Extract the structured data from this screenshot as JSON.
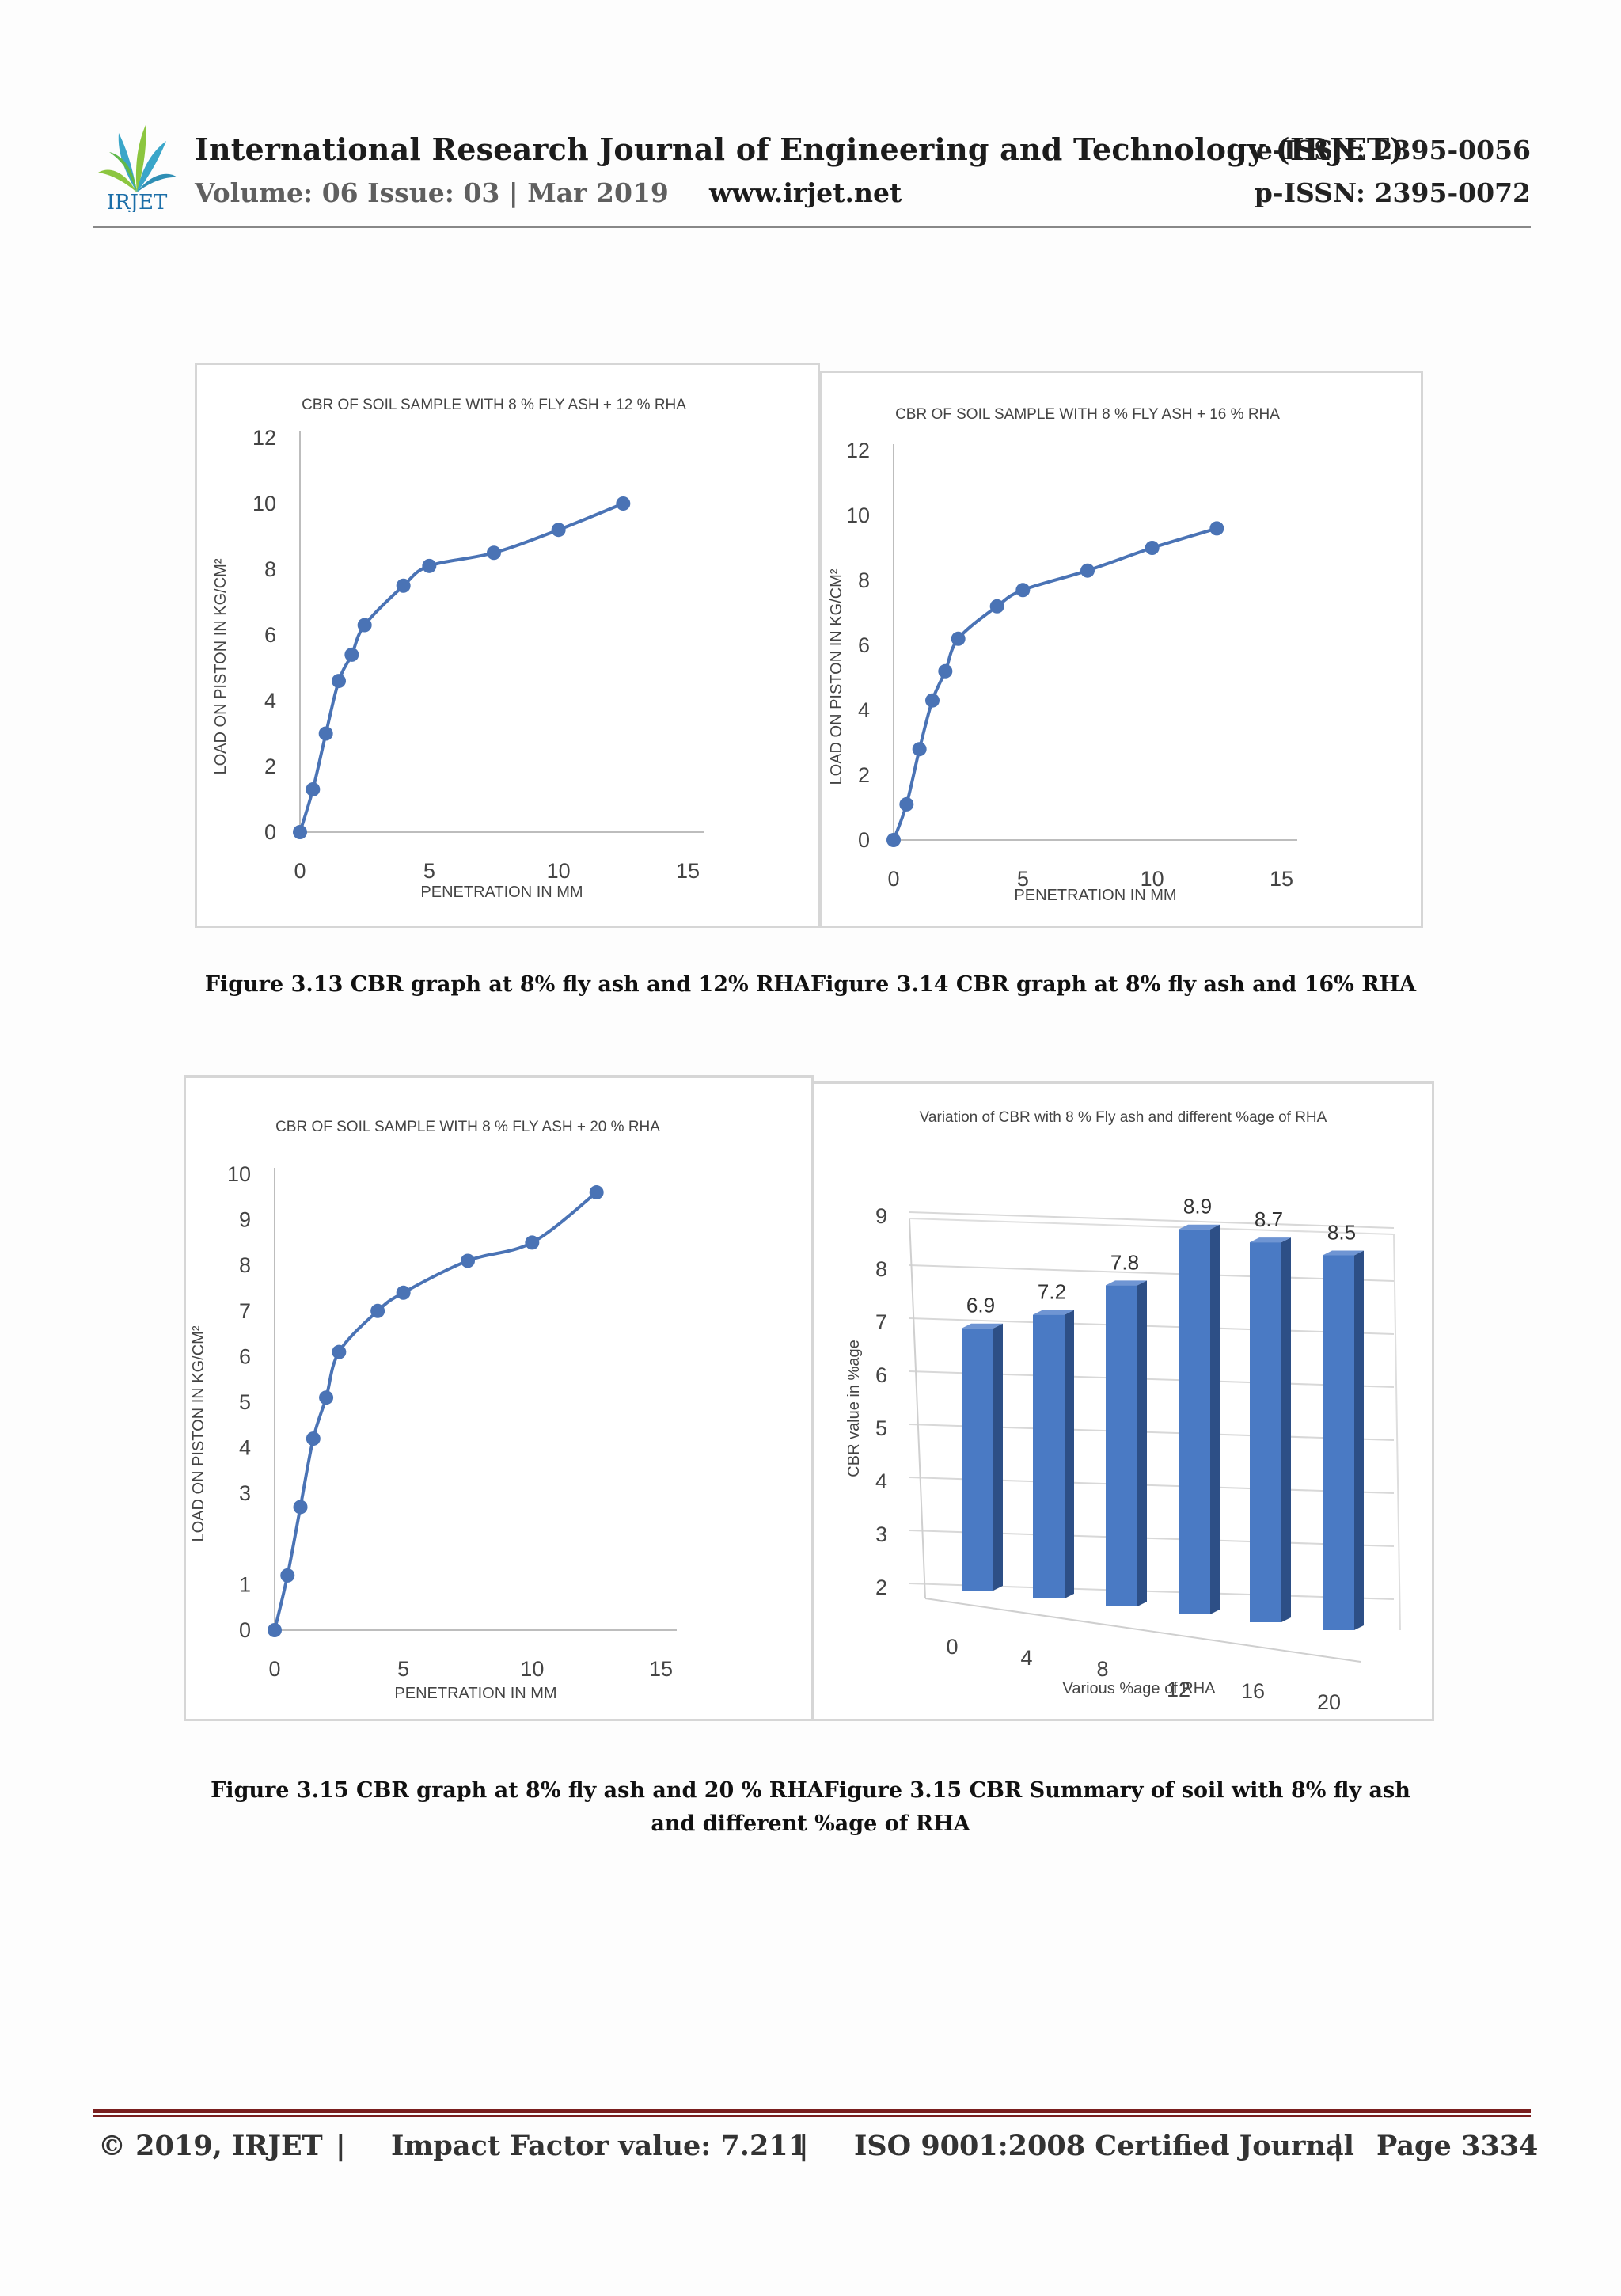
{
  "header": {
    "logo_text": "IRJET",
    "journal_title": "International Research Journal of Engineering and Technology (IRJET)",
    "eissn": "e-ISSN: 2395-0056",
    "volume": "Volume: 06 Issue: 03 | Mar 2019",
    "website": "www.irjet.net",
    "pissn": "p-ISSN: 2395-0072"
  },
  "captions": {
    "row1": "Figure 3.13 CBR graph at 8% fly ash and 12% RHAFigure 3.14 CBR graph at 8% fly ash and 16% RHA",
    "row2_line1": "Figure 3.15 CBR graph at 8% fly ash and 20 % RHAFigure 3.15 CBR Summary of soil with 8% fly ash",
    "row2_line2": "and different %age of RHA"
  },
  "footer": {
    "copyright": "© 2019, IRJET",
    "sep": "|",
    "impact": "Impact Factor value: 7.211",
    "iso": "ISO 9001:2008 Certified Journal",
    "page": "Page 3334"
  },
  "chart_data": [
    {
      "type": "line",
      "title": "CBR OF SOIL SAMPLE WITH 8 % FLY ASH + 12 % RHA",
      "xlabel": "PENETRATION IN MM",
      "ylabel": "LOAD ON PISTON IN KG/CM²",
      "xlim": [
        0,
        15
      ],
      "ylim": [
        0,
        12
      ],
      "xticks": [
        0,
        5,
        10,
        15
      ],
      "yticks": [
        0,
        2,
        4,
        6,
        8,
        10,
        12
      ],
      "x": [
        0,
        0.5,
        1,
        1.5,
        2,
        2.5,
        4,
        5,
        7.5,
        10,
        12.5
      ],
      "y": [
        0,
        1.3,
        3.0,
        4.6,
        5.4,
        6.3,
        7.5,
        8.1,
        8.5,
        9.2,
        10.0
      ],
      "color": "#4a73b5"
    },
    {
      "type": "line",
      "title": "CBR OF SOIL SAMPLE WITH 8 % FLY ASH + 16 % RHA",
      "xlabel": "PENETRATION IN MM",
      "ylabel": "LOAD ON PISTON IN KG/CM²",
      "xlim": [
        0,
        15
      ],
      "ylim": [
        0,
        12
      ],
      "xticks": [
        0,
        5,
        10,
        15
      ],
      "yticks": [
        0,
        2,
        4,
        6,
        8,
        10,
        12
      ],
      "x": [
        0,
        0.5,
        1,
        1.5,
        2,
        2.5,
        4,
        5,
        7.5,
        10,
        12.5
      ],
      "y": [
        0,
        1.1,
        2.8,
        4.3,
        5.2,
        6.2,
        7.2,
        7.7,
        8.3,
        9.0,
        9.6
      ],
      "color": "#4a73b5"
    },
    {
      "type": "line",
      "title": "CBR OF SOIL SAMPLE WITH 8 % FLY ASH + 20 % RHA",
      "xlabel": "PENETRATION IN MM",
      "ylabel": "LOAD ON PISTON IN KG/CM²",
      "xlim": [
        0,
        15
      ],
      "ylim": [
        0,
        10
      ],
      "xticks": [
        0,
        5,
        10,
        15
      ],
      "yticks": [
        0,
        1,
        3,
        4,
        5,
        6,
        7,
        8,
        9,
        10
      ],
      "ytick_labels": [
        "0",
        "1",
        "3",
        "4",
        "5",
        "6",
        "7",
        "8",
        "9",
        "10"
      ],
      "x": [
        0,
        0.5,
        1,
        1.5,
        2,
        2.5,
        4,
        5,
        7.5,
        10,
        12.5
      ],
      "y": [
        0,
        1.2,
        2.7,
        4.2,
        5.1,
        6.1,
        7.0,
        7.4,
        8.1,
        8.5,
        9.6
      ],
      "color": "#4a73b5"
    },
    {
      "type": "bar",
      "title": "Variation of CBR with 8 % Fly ash and different %age of RHA",
      "xlabel": "Various %age of RHA",
      "ylabel": "CBR value in %age",
      "categories": [
        "0",
        "4",
        "8",
        "12",
        "16",
        "20"
      ],
      "values": [
        6.9,
        7.2,
        7.8,
        8.9,
        8.7,
        8.5
      ],
      "yticks": [
        2,
        3,
        4,
        5,
        6,
        7,
        8,
        9
      ],
      "ylim": [
        2,
        9
      ],
      "color": "#4a7ac4"
    }
  ]
}
